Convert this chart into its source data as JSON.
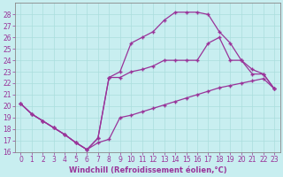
{
  "xlabel": "Windchill (Refroidissement éolien,°C)",
  "background_color": "#c8eef0",
  "grid_color": "#aadddd",
  "line_color": "#993399",
  "xlim": [
    -0.5,
    23.5
  ],
  "ylim": [
    16,
    29
  ],
  "xticks": [
    0,
    1,
    2,
    3,
    4,
    5,
    6,
    7,
    8,
    9,
    10,
    11,
    12,
    13,
    14,
    15,
    16,
    17,
    18,
    19,
    20,
    21,
    22,
    23
  ],
  "yticks": [
    16,
    17,
    18,
    19,
    20,
    21,
    22,
    23,
    24,
    25,
    26,
    27,
    28
  ],
  "curve1_x": [
    0,
    1,
    2,
    3,
    4,
    5,
    6,
    7,
    8,
    9,
    10,
    11,
    12,
    13,
    14,
    15,
    16,
    17,
    18,
    19,
    20,
    21,
    22,
    23
  ],
  "curve1_y": [
    20.2,
    19.3,
    18.7,
    18.1,
    17.5,
    16.8,
    16.2,
    16.8,
    17.1,
    19.0,
    19.2,
    19.5,
    19.8,
    20.1,
    20.4,
    20.7,
    21.0,
    21.3,
    21.6,
    21.8,
    22.0,
    22.2,
    22.4,
    21.5
  ],
  "curve2_x": [
    0,
    1,
    2,
    3,
    4,
    5,
    6,
    7,
    8,
    9,
    10,
    11,
    12,
    13,
    14,
    15,
    16,
    17,
    18,
    19,
    20,
    21,
    22,
    23
  ],
  "curve2_y": [
    20.2,
    19.3,
    18.7,
    18.1,
    17.5,
    16.8,
    16.2,
    17.2,
    22.5,
    23.0,
    25.5,
    26.0,
    26.5,
    27.5,
    28.2,
    28.2,
    28.2,
    28.0,
    26.5,
    25.5,
    24.0,
    22.8,
    22.8,
    21.5
  ],
  "curve3_x": [
    0,
    1,
    2,
    3,
    4,
    5,
    6,
    7,
    8,
    9,
    10,
    11,
    12,
    13,
    14,
    15,
    16,
    17,
    18,
    19,
    20,
    21,
    22,
    23
  ],
  "curve3_y": [
    20.2,
    19.3,
    18.7,
    18.1,
    17.5,
    16.8,
    16.2,
    17.2,
    22.5,
    22.5,
    23.0,
    23.2,
    23.5,
    24.0,
    24.0,
    24.0,
    24.0,
    25.5,
    26.0,
    24.0,
    24.0,
    23.2,
    22.8,
    21.5
  ],
  "marker": "+",
  "markersize": 3,
  "linewidth": 0.9,
  "tick_fontsize": 5.5,
  "xlabel_fontsize": 6.0
}
